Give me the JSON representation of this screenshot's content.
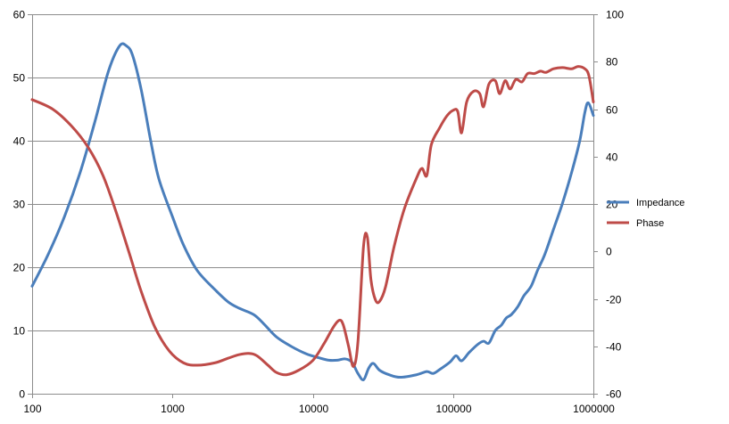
{
  "chart_data": {
    "type": "line",
    "x_scale": "log",
    "xlim": [
      100,
      1000000
    ],
    "ylim": [
      0,
      60
    ],
    "y2lim": [
      -60,
      100
    ],
    "grid": true,
    "legend_position": "right",
    "x_ticks": [
      "100",
      "1000",
      "10000",
      "100000",
      "1000000"
    ],
    "y_ticks": [
      "0",
      "10",
      "20",
      "30",
      "40",
      "50",
      "60"
    ],
    "y2_ticks": [
      "-60",
      "-40",
      "-20",
      "0",
      "20",
      "40",
      "60",
      "80",
      "100"
    ],
    "series": [
      {
        "name": "Impedance",
        "axis": "left",
        "color": "#4a7ebb",
        "points": [
          [
            100,
            17
          ],
          [
            130,
            22
          ],
          [
            170,
            28
          ],
          [
            220,
            35
          ],
          [
            280,
            43
          ],
          [
            350,
            51
          ],
          [
            420,
            55
          ],
          [
            470,
            55
          ],
          [
            520,
            53.5
          ],
          [
            600,
            48
          ],
          [
            700,
            40
          ],
          [
            800,
            34
          ],
          [
            1000,
            28
          ],
          [
            1200,
            23.5
          ],
          [
            1500,
            19.5
          ],
          [
            2000,
            16.5
          ],
          [
            2500,
            14.5
          ],
          [
            3000,
            13.5
          ],
          [
            3800,
            12.5
          ],
          [
            4500,
            11
          ],
          [
            5500,
            9
          ],
          [
            7000,
            7.5
          ],
          [
            9000,
            6.3
          ],
          [
            11000,
            5.7
          ],
          [
            13000,
            5.3
          ],
          [
            15000,
            5.3
          ],
          [
            17000,
            5.5
          ],
          [
            19000,
            5.0
          ],
          [
            21000,
            3.2
          ],
          [
            23000,
            2.2
          ],
          [
            25000,
            4.0
          ],
          [
            27000,
            4.8
          ],
          [
            30000,
            3.7
          ],
          [
            35000,
            3.0
          ],
          [
            42000,
            2.6
          ],
          [
            55000,
            3.0
          ],
          [
            65000,
            3.5
          ],
          [
            72000,
            3.2
          ],
          [
            80000,
            3.8
          ],
          [
            95000,
            5.0
          ],
          [
            105000,
            6.0
          ],
          [
            115000,
            5.2
          ],
          [
            130000,
            6.5
          ],
          [
            150000,
            7.8
          ],
          [
            165000,
            8.3
          ],
          [
            180000,
            8.0
          ],
          [
            200000,
            10.0
          ],
          [
            220000,
            10.8
          ],
          [
            240000,
            12.0
          ],
          [
            260000,
            12.5
          ],
          [
            290000,
            13.8
          ],
          [
            320000,
            15.5
          ],
          [
            360000,
            17.0
          ],
          [
            400000,
            19.5
          ],
          [
            450000,
            22.0
          ],
          [
            520000,
            26.0
          ],
          [
            600000,
            30.0
          ],
          [
            700000,
            35.0
          ],
          [
            800000,
            40.0
          ],
          [
            870000,
            44.5
          ],
          [
            920000,
            46.0
          ],
          [
            1000000,
            44.0
          ]
        ]
      },
      {
        "name": "Phase",
        "axis": "right",
        "color": "#be4b48",
        "points": [
          [
            100,
            64
          ],
          [
            140,
            60
          ],
          [
            190,
            53
          ],
          [
            250,
            44
          ],
          [
            320,
            32
          ],
          [
            400,
            16
          ],
          [
            500,
            -2
          ],
          [
            600,
            -17
          ],
          [
            750,
            -32
          ],
          [
            950,
            -42
          ],
          [
            1200,
            -47
          ],
          [
            1500,
            -48
          ],
          [
            2000,
            -47
          ],
          [
            2500,
            -45
          ],
          [
            3000,
            -43.5
          ],
          [
            3500,
            -43
          ],
          [
            4000,
            -44
          ],
          [
            4800,
            -48
          ],
          [
            5500,
            -51
          ],
          [
            6500,
            -52
          ],
          [
            8000,
            -50
          ],
          [
            10000,
            -46
          ],
          [
            12000,
            -39
          ],
          [
            14000,
            -32
          ],
          [
            15500,
            -29
          ],
          [
            16500,
            -31
          ],
          [
            18000,
            -40
          ],
          [
            19500,
            -48.5
          ],
          [
            21000,
            -38
          ],
          [
            23000,
            2
          ],
          [
            24500,
            6
          ],
          [
            26000,
            -12
          ],
          [
            28000,
            -20.5
          ],
          [
            30000,
            -21
          ],
          [
            33000,
            -15
          ],
          [
            38000,
            2
          ],
          [
            45000,
            18
          ],
          [
            55000,
            31
          ],
          [
            60000,
            35
          ],
          [
            65000,
            32
          ],
          [
            70000,
            45
          ],
          [
            80000,
            52
          ],
          [
            90000,
            57
          ],
          [
            100000,
            59.5
          ],
          [
            108000,
            59
          ],
          [
            115000,
            50
          ],
          [
            125000,
            63
          ],
          [
            140000,
            67.5
          ],
          [
            155000,
            66.5
          ],
          [
            165000,
            61
          ],
          [
            180000,
            70.5
          ],
          [
            200000,
            72
          ],
          [
            215000,
            66.5
          ],
          [
            235000,
            72
          ],
          [
            255000,
            68.5
          ],
          [
            280000,
            72.5
          ],
          [
            310000,
            71.5
          ],
          [
            340000,
            75
          ],
          [
            380000,
            75
          ],
          [
            420000,
            76
          ],
          [
            460000,
            75.5
          ],
          [
            520000,
            77
          ],
          [
            600000,
            77.5
          ],
          [
            700000,
            77
          ],
          [
            780000,
            78
          ],
          [
            870000,
            77
          ],
          [
            930000,
            74
          ],
          [
            1000000,
            63
          ]
        ]
      }
    ]
  }
}
